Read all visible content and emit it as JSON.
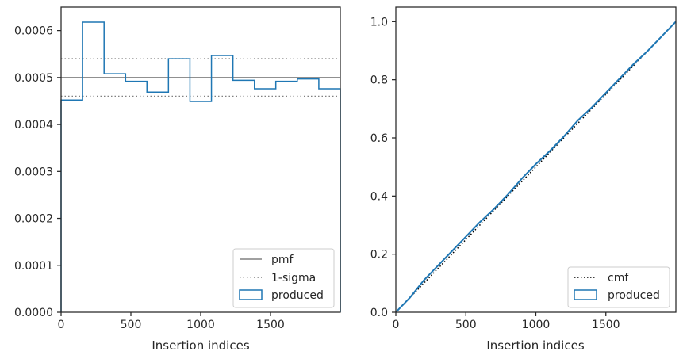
{
  "chart_data": [
    {
      "type": "histogram",
      "xlabel": "Insertion indices",
      "ylabel": "",
      "xlim": [
        0,
        2000
      ],
      "ylim": [
        0,
        0.00065
      ],
      "xticks": [
        0,
        500,
        1000,
        1500
      ],
      "xtick_labels": [
        "0",
        "500",
        "1000",
        "1500"
      ],
      "yticks": [
        0,
        0.0001,
        0.0002,
        0.0003,
        0.0004,
        0.0005,
        0.0006
      ],
      "ytick_labels": [
        "0.0000",
        "0.0001",
        "0.0002",
        "0.0003",
        "0.0004",
        "0.0005",
        "0.0006"
      ],
      "legend_position": "lower-right",
      "reference_lines": [
        {
          "name": "pmf",
          "style": "solid",
          "color": "#808080",
          "y": [
            0.0005
          ]
        },
        {
          "name": "1-sigma",
          "style": "dotted",
          "color": "#808080",
          "y": [
            0.00054,
            0.00046
          ]
        }
      ],
      "series": [
        {
          "name": "produced",
          "color": "#1f77b4",
          "bin_edges": [
            0,
            154,
            308,
            462,
            615,
            769,
            923,
            1077,
            1231,
            1385,
            1538,
            1692,
            1846,
            2000
          ],
          "values": [
            0.000452,
            0.000618,
            0.000508,
            0.000492,
            0.000469,
            0.00054,
            0.000449,
            0.000547,
            0.000494,
            0.000476,
            0.000492,
            0.000497,
            0.000476
          ]
        }
      ]
    },
    {
      "type": "line",
      "xlabel": "Insertion indices",
      "ylabel": "",
      "xlim": [
        0,
        2000
      ],
      "ylim": [
        0,
        1.05
      ],
      "xticks": [
        0,
        500,
        1000,
        1500
      ],
      "xtick_labels": [
        "0",
        "500",
        "1000",
        "1500"
      ],
      "yticks": [
        0,
        0.2,
        0.4,
        0.6,
        0.8,
        1.0
      ],
      "ytick_labels": [
        "0.0",
        "0.2",
        "0.4",
        "0.6",
        "0.8",
        "1.0"
      ],
      "legend_position": "lower-right",
      "series": [
        {
          "name": "cmf",
          "style": "dotted",
          "color": "#000000",
          "x": [
            0,
            2000
          ],
          "y": [
            0,
            1.0
          ]
        },
        {
          "name": "produced",
          "style": "step",
          "color": "#1f77b4",
          "x": [
            0,
            100,
            200,
            300,
            400,
            500,
            600,
            700,
            800,
            900,
            1000,
            1100,
            1200,
            1300,
            1400,
            1500,
            1600,
            1700,
            1800,
            1900,
            2000
          ],
          "y": [
            0,
            0.05,
            0.11,
            0.16,
            0.21,
            0.26,
            0.31,
            0.355,
            0.405,
            0.46,
            0.51,
            0.555,
            0.605,
            0.66,
            0.705,
            0.755,
            0.805,
            0.855,
            0.9,
            0.95,
            1.0
          ]
        }
      ]
    }
  ]
}
